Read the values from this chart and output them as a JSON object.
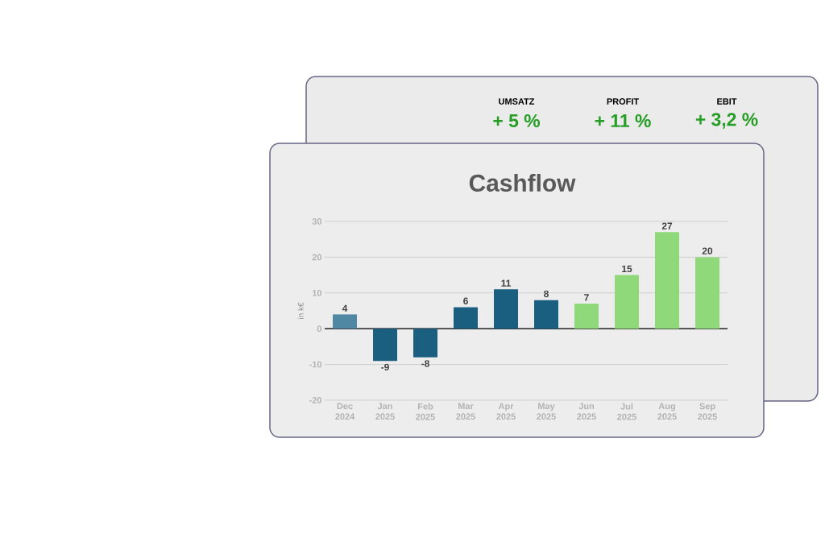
{
  "chart_data": {
    "type": "bar",
    "title": "Cashflow",
    "ylabel": "in k€",
    "categories": [
      "Dec 2024",
      "Jan 2025",
      "Feb 2025",
      "Mar 2025",
      "Apr 2025",
      "May 2025",
      "Jun 2025",
      "Jul 2025",
      "Aug 2025",
      "Sep 2025"
    ],
    "values": [
      4,
      -9,
      -8,
      6,
      11,
      8,
      7,
      15,
      27,
      20
    ],
    "colors": [
      "#4f88a3",
      "#1a5e80",
      "#1a5e80",
      "#1a5e80",
      "#1a5e80",
      "#1a5e80",
      "#8fd97a",
      "#8fd97a",
      "#8fd97a",
      "#8fd97a"
    ],
    "ylim": [
      -20,
      30
    ],
    "yticks": [
      -20,
      -10,
      0,
      10,
      20,
      30
    ],
    "grid": "y",
    "data_labels": true,
    "annotations": [
      "UMSATZ",
      "+ 5 %",
      "PROFIT",
      "+ 11 %",
      "EBIT",
      "+ 3,2 %"
    ]
  }
}
